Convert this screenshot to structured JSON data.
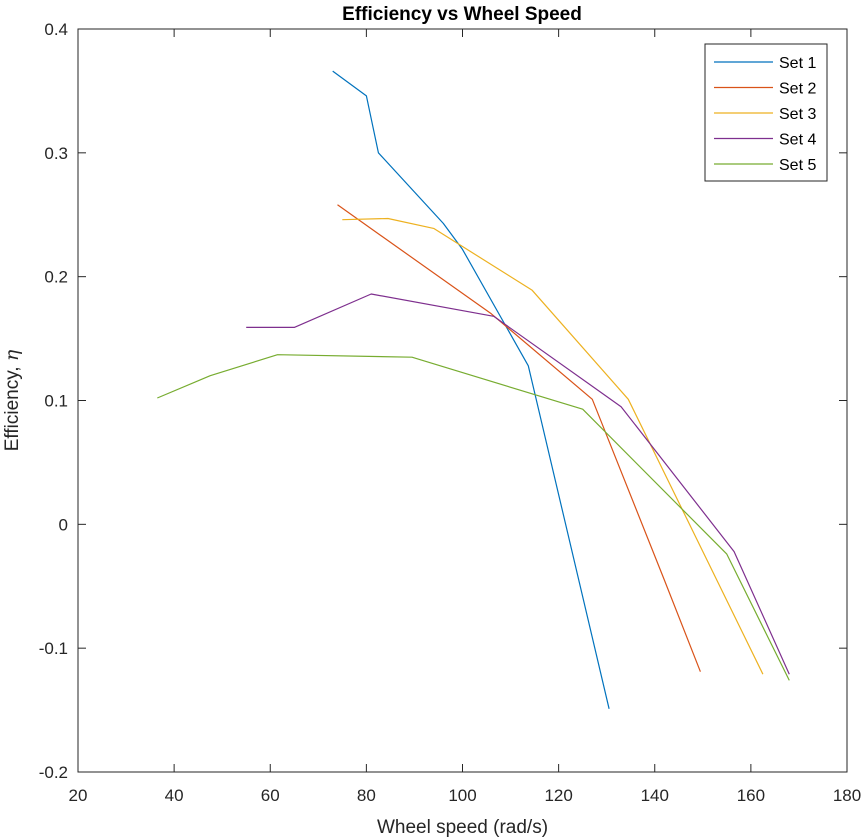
{
  "chart_data": {
    "type": "line",
    "title": "Efficiency vs Wheel Speed",
    "xlabel": "Wheel speed (rad/s)",
    "ylabel_prefix": "Efficiency, ",
    "ylabel_symbol": "η",
    "xlim": [
      20,
      180
    ],
    "ylim": [
      -0.2,
      0.4
    ],
    "xticks": [
      20,
      40,
      60,
      80,
      100,
      120,
      140,
      160,
      180
    ],
    "yticks": [
      -0.2,
      -0.1,
      0,
      0.1,
      0.2,
      0.3,
      0.4
    ],
    "xtick_labels": [
      "20",
      "40",
      "60",
      "80",
      "100",
      "120",
      "140",
      "160",
      "180"
    ],
    "ytick_labels": [
      "-0.2",
      "-0.1",
      "0",
      "0.1",
      "0.2",
      "0.3",
      "0.4"
    ],
    "grid": false,
    "legend_position": "top-right",
    "series": [
      {
        "name": "Set 1",
        "color": "#0072BD",
        "x": [
          73,
          80,
          82.5,
          96,
          100,
          113.7,
          130.5
        ],
        "y": [
          0.366,
          0.346,
          0.3,
          0.243,
          0.222,
          0.128,
          -0.149
        ]
      },
      {
        "name": "Set 2",
        "color": "#D95319",
        "x": [
          74,
          106,
          127,
          142,
          149.5
        ],
        "y": [
          0.258,
          0.17,
          0.101,
          -0.045,
          -0.119
        ]
      },
      {
        "name": "Set 3",
        "color": "#EDB120",
        "x": [
          75,
          84.5,
          94,
          114.5,
          134.5,
          162.5
        ],
        "y": [
          0.246,
          0.247,
          0.239,
          0.189,
          0.101,
          -0.121
        ]
      },
      {
        "name": "Set 4",
        "color": "#7E2F8E",
        "x": [
          55,
          65,
          81,
          106.5,
          133,
          156.5,
          168
        ],
        "y": [
          0.159,
          0.159,
          0.186,
          0.168,
          0.095,
          -0.022,
          -0.121
        ]
      },
      {
        "name": "Set 5",
        "color": "#77AC30",
        "x": [
          36.5,
          47.5,
          61.5,
          89.5,
          125,
          155,
          168
        ],
        "y": [
          0.102,
          0.12,
          0.137,
          0.135,
          0.093,
          -0.024,
          -0.126
        ]
      }
    ]
  }
}
